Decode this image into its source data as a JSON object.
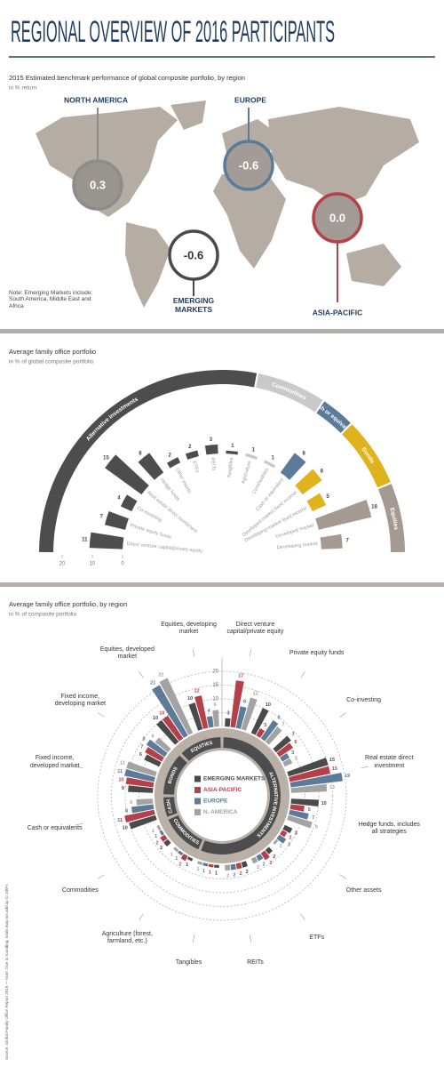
{
  "title": "REGIONAL OVERVIEW OF 2016 PARTICIPANTS",
  "chart_data": [
    {
      "type": "map",
      "title": "2015 Estimated benchmark performance of global composite portfolio, by region",
      "subtitle": "in % return",
      "categories": [
        "NORTH AMERICA",
        "EUROPE",
        "EMERGING MARKETS",
        "ASIA-PACIFIC"
      ],
      "values": [
        0.3,
        -0.6,
        -0.6,
        0.0
      ],
      "value_labels": [
        "0.3",
        "-0.6",
        "-0.6",
        "0.0"
      ],
      "colors": [
        "#8c8c8c",
        "#5b7b99",
        "#4a4a4a",
        "#b5404a"
      ],
      "note": "Note: Emerging Markets include: South America, Middle East and Africa"
    },
    {
      "type": "radial-bar",
      "title": "Average family office portfolio",
      "subtitle": "in % of global composite portfolio",
      "rlim": [
        0,
        20
      ],
      "rticks": [
        20,
        10,
        0
      ],
      "groups": [
        {
          "name": "Alternative investments",
          "color": "#4d4d4d",
          "categories": [
            "Direct venture capital/private equity",
            "Private equity funds",
            "Co-investing",
            "Real estate direct investment",
            "Hedge funds",
            "Other assets",
            "ETFs",
            "REITs",
            "Tangibles"
          ],
          "values": [
            11,
            7,
            4,
            15,
            8,
            2,
            2,
            3,
            1
          ]
        },
        {
          "name": "Commodities",
          "color": "#c9c9c9",
          "categories": [
            "Agriculture",
            "Commodities"
          ],
          "values": [
            1,
            1
          ]
        },
        {
          "name": "Cash or equivalent",
          "color": "#5b7b99",
          "categories": [
            "Cash or equivalent"
          ],
          "values": [
            8
          ]
        },
        {
          "name": "Bonds",
          "color": "#e0b31e",
          "categories": [
            "Developed-market fixed income",
            "Developing-market fixed income"
          ],
          "values": [
            8,
            5
          ]
        },
        {
          "name": "Equities",
          "color": "#a59a92",
          "categories": [
            "Developed market",
            "Developing market"
          ],
          "values": [
            18,
            7
          ]
        }
      ]
    },
    {
      "type": "radial-grouped-bar",
      "title": "Average family office portfolio, by region",
      "subtitle": "in % of composite portfolio",
      "rlim": [
        0,
        25
      ],
      "rticks": [
        5,
        10,
        15,
        20
      ],
      "groups": [
        {
          "name": "ALTERNATIVE INVESTMENTS",
          "categories": [
            "Direct venture capital/private equity",
            "Private equity funds",
            "Co-investing",
            "Real estate direct investment",
            "Hedge funds, includes all strategies",
            "Other assets",
            "ETFs",
            "REITs",
            "Tangibles"
          ]
        },
        {
          "name": "COMMODITIES",
          "categories": [
            "Agriculture (forest, farmland, etc.)",
            "Commodities"
          ]
        },
        {
          "name": "CASH",
          "categories": [
            "Cash or equivalents"
          ]
        },
        {
          "name": "BONDS",
          "categories": [
            "Fixed income, developed market",
            "Fixed income, developing market"
          ]
        },
        {
          "name": "EQUITIES",
          "categories": [
            "Equities, developed market",
            "Equities, developing market"
          ]
        }
      ],
      "series": [
        {
          "name": "EMERGING MARKETS",
          "color": "#4a4a4a",
          "values": [
            3,
            10,
            7,
            15,
            10,
            3,
            2,
            2,
            1,
            1,
            2,
            10,
            9,
            6,
            10,
            10
          ]
        },
        {
          "name": "ASIA-PACIFIC",
          "color": "#b5404a",
          "values": [
            17,
            3,
            6,
            15,
            5,
            2,
            3,
            2,
            1,
            2,
            2,
            11,
            10,
            7,
            10,
            12
          ]
        },
        {
          "name": "EUROPE",
          "color": "#5b7b99",
          "values": [
            8,
            8,
            3,
            19,
            7,
            3,
            2,
            2,
            1,
            1,
            1,
            8,
            11,
            8,
            21,
            4
          ]
        },
        {
          "name": "N. AMERICA",
          "color": "#a3a3a3",
          "values": [
            12,
            7,
            3,
            13,
            9,
            1,
            2,
            2,
            1,
            1,
            1,
            6,
            11,
            6,
            22,
            6
          ]
        }
      ]
    }
  ],
  "source": "Source: Global Family Office Report 2016 — Note: Due to rounding, totals may not add up to 100%"
}
